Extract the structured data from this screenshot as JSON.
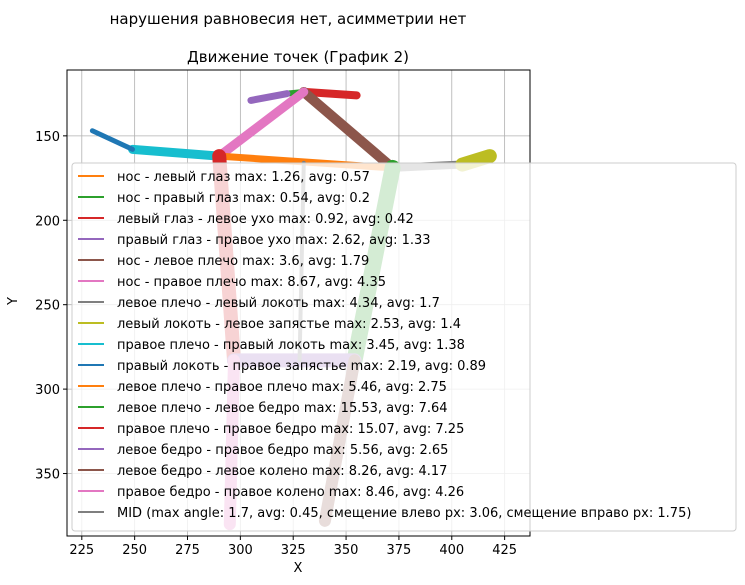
{
  "suptitle": "нарушения равновесия нет, асимметрии нет",
  "chart_data": {
    "type": "line",
    "title": "Движение точек (График 2)",
    "xlabel": "X",
    "ylabel": "Y",
    "xlim": [
      218,
      437
    ],
    "ylim": [
      387,
      111
    ],
    "y_inverted": true,
    "grid": true,
    "legend_position": "lower-right",
    "xticks": [
      225,
      250,
      275,
      300,
      325,
      350,
      375,
      400,
      425
    ],
    "yticks": [
      150,
      200,
      250,
      300,
      350
    ],
    "points": {
      "nose": [
        330,
        124
      ],
      "left_eye": [
        331,
        124
      ],
      "right_eye": [
        322,
        125
      ],
      "left_ear": [
        355,
        126
      ],
      "right_ear": [
        305,
        129
      ],
      "left_shoulder": [
        372,
        169
      ],
      "right_shoulder": [
        290,
        162
      ],
      "left_elbow": [
        405,
        167
      ],
      "right_elbow": [
        249,
        158
      ],
      "left_wrist": [
        418,
        162
      ],
      "right_wrist": [
        230,
        147
      ],
      "left_hip": [
        354,
        283
      ],
      "right_hip": [
        297,
        283
      ],
      "left_knee": [
        340,
        378
      ],
      "right_knee": [
        295,
        380
      ]
    },
    "series": [
      {
        "name": "нос - левый глаз max: 1.26, avg: 0.57",
        "color": "#ff7f0e",
        "from": "nose",
        "to": "left_eye",
        "width": 6
      },
      {
        "name": "нос - правый глаз max: 0.54, avg: 0.2",
        "color": "#2ca02c",
        "from": "nose",
        "to": "right_eye",
        "width": 6
      },
      {
        "name": "левый глаз - левое ухо max: 0.92, avg: 0.42",
        "color": "#d62728",
        "from": "left_eye",
        "to": "left_ear",
        "width": 8
      },
      {
        "name": "правый глаз - правое ухо max: 2.62, avg: 1.33",
        "color": "#9467bd",
        "from": "right_eye",
        "to": "right_ear",
        "width": 7
      },
      {
        "name": "нос - левое плечо max: 3.6, avg: 1.79",
        "color": "#8c564b",
        "from": "nose",
        "to": "left_shoulder",
        "width": 10
      },
      {
        "name": "нос - правое плечо max: 8.67, avg: 4.35",
        "color": "#e377c2",
        "from": "nose",
        "to": "right_shoulder",
        "width": 9
      },
      {
        "name": "левое плечо - левый локоть max: 4.34, avg: 1.7",
        "color": "#7f7f7f",
        "from": "left_shoulder",
        "to": "left_elbow",
        "width": 8
      },
      {
        "name": "левый локоть - левое запястье max: 2.53, avg: 1.4",
        "color": "#bcbd22",
        "from": "left_elbow",
        "to": "left_wrist",
        "width": 14
      },
      {
        "name": "правое плечо - правый локоть max: 3.45, avg: 1.38",
        "color": "#17becf",
        "from": "right_shoulder",
        "to": "right_elbow",
        "width": 9
      },
      {
        "name": "правый локоть - правое запястье max: 2.19, avg: 0.89",
        "color": "#1f77b4",
        "from": "right_elbow",
        "to": "right_wrist",
        "width": 5
      },
      {
        "name": "левое плечо - правое плечо max: 5.46, avg: 2.75",
        "color": "#ff7f0e",
        "from": "left_shoulder",
        "to": "right_shoulder",
        "width": 7
      },
      {
        "name": "левое плечо - левое бедро max: 15.53, avg: 7.64",
        "color": "#2ca02c",
        "from": "left_shoulder",
        "to": "left_hip",
        "width": 16
      },
      {
        "name": "правое плечо - правое бедро max: 15.07, avg: 7.25",
        "color": "#d62728",
        "from": "right_shoulder",
        "to": "right_hip",
        "width": 14
      },
      {
        "name": "левое бедро - правое бедро max: 5.56, avg: 2.65",
        "color": "#9467bd",
        "from": "left_hip",
        "to": "right_hip",
        "width": 14
      },
      {
        "name": "левое бедро - левое колено max: 8.26, avg: 4.17",
        "color": "#8c564b",
        "from": "left_hip",
        "to": "left_knee",
        "width": 12
      },
      {
        "name": "правое бедро - правое колено max: 8.46, avg: 4.26",
        "color": "#e377c2",
        "from": "right_hip",
        "to": "right_knee",
        "width": 12
      },
      {
        "name": "MID (max angle: 1.7, avg: 0.45, смещение влево px: 3.06, смещение вправо px: 1.75)",
        "color": "#7f7f7f",
        "from": "mid_top",
        "to": "mid_bottom",
        "width": 4
      }
    ],
    "mid_points": {
      "mid_top": [
        330,
        166
      ],
      "mid_bottom": [
        328,
        283
      ]
    }
  }
}
